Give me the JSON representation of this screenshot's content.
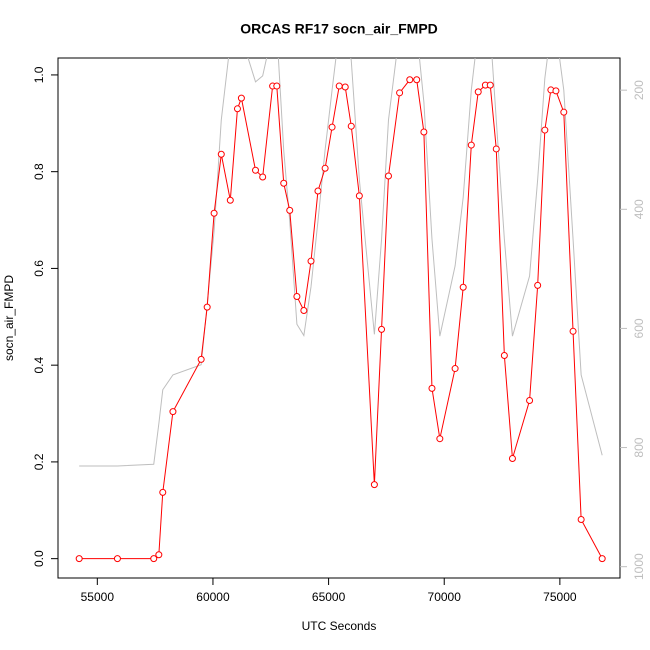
{
  "chart_data": {
    "type": "line",
    "title": "ORCAS RF17 socn_air_FMPD",
    "xlabel": "UTC Seconds",
    "ylabel": "socn_air_FMPD",
    "x": [
      54216,
      55870,
      57440,
      57660,
      57830,
      58270,
      59490,
      59750,
      60050,
      60360,
      60750,
      61060,
      61230,
      61840,
      62150,
      62580,
      62760,
      63060,
      63320,
      63630,
      63930,
      64240,
      64540,
      64850,
      65150,
      65460,
      65720,
      65980,
      66330,
      66980,
      67290,
      67590,
      68070,
      68510,
      68810,
      69120,
      69470,
      69810,
      70470,
      70820,
      71170,
      71470,
      71780,
      71990,
      72250,
      72600,
      72950,
      73690,
      74040,
      74350,
      74610,
      74830,
      75170,
      75570,
      75920,
      76830
    ],
    "series": [
      {
        "color": "#bebebe",
        "axis": "y2",
        "values": [
          831,
          831,
          828,
          760,
          703,
          678,
          661,
          560,
          436,
          250,
          120,
          100,
          110,
          186,
          176,
          100,
          100,
          301,
          420,
          593,
          612,
          530,
          420,
          300,
          200,
          100,
          100,
          150,
          350,
          610,
          450,
          250,
          100,
          100,
          100,
          220,
          450,
          613,
          495,
          380,
          200,
          100,
          100,
          100,
          250,
          450,
          613,
          512,
          350,
          180,
          100,
          100,
          200,
          450,
          678,
          813
        ]
      },
      {
        "color": "#ff0000",
        "values": [
          0.0,
          0.0,
          0.0,
          0.008,
          0.137,
          0.304,
          0.412,
          0.52,
          0.714,
          0.836,
          0.741,
          0.93,
          0.952,
          0.803,
          0.789,
          0.977,
          0.977,
          0.776,
          0.72,
          0.542,
          0.513,
          0.615,
          0.76,
          0.807,
          0.892,
          0.977,
          0.975,
          0.894,
          0.75,
          0.153,
          0.474,
          0.791,
          0.963,
          0.99,
          0.99,
          0.882,
          0.352,
          0.248,
          0.393,
          0.561,
          0.855,
          0.965,
          0.979,
          0.979,
          0.847,
          0.42,
          0.207,
          0.327,
          0.565,
          0.886,
          0.969,
          0.967,
          0.923,
          0.47,
          0.081,
          0.0
        ]
      }
    ],
    "xlim": [
      53300,
      77600
    ],
    "xticks": [
      55000,
      60000,
      65000,
      70000,
      75000
    ],
    "ylim": [
      -0.04,
      1.035
    ],
    "yticks": [
      {
        "value": 0,
        "label": "0.0"
      },
      0.2,
      0.4,
      0.6,
      0.8,
      {
        "value": 1,
        "label": "1.0"
      }
    ],
    "y2lim": [
      1019,
      146
    ],
    "y2ticks": [
      200,
      400,
      600,
      800,
      1000
    ]
  }
}
